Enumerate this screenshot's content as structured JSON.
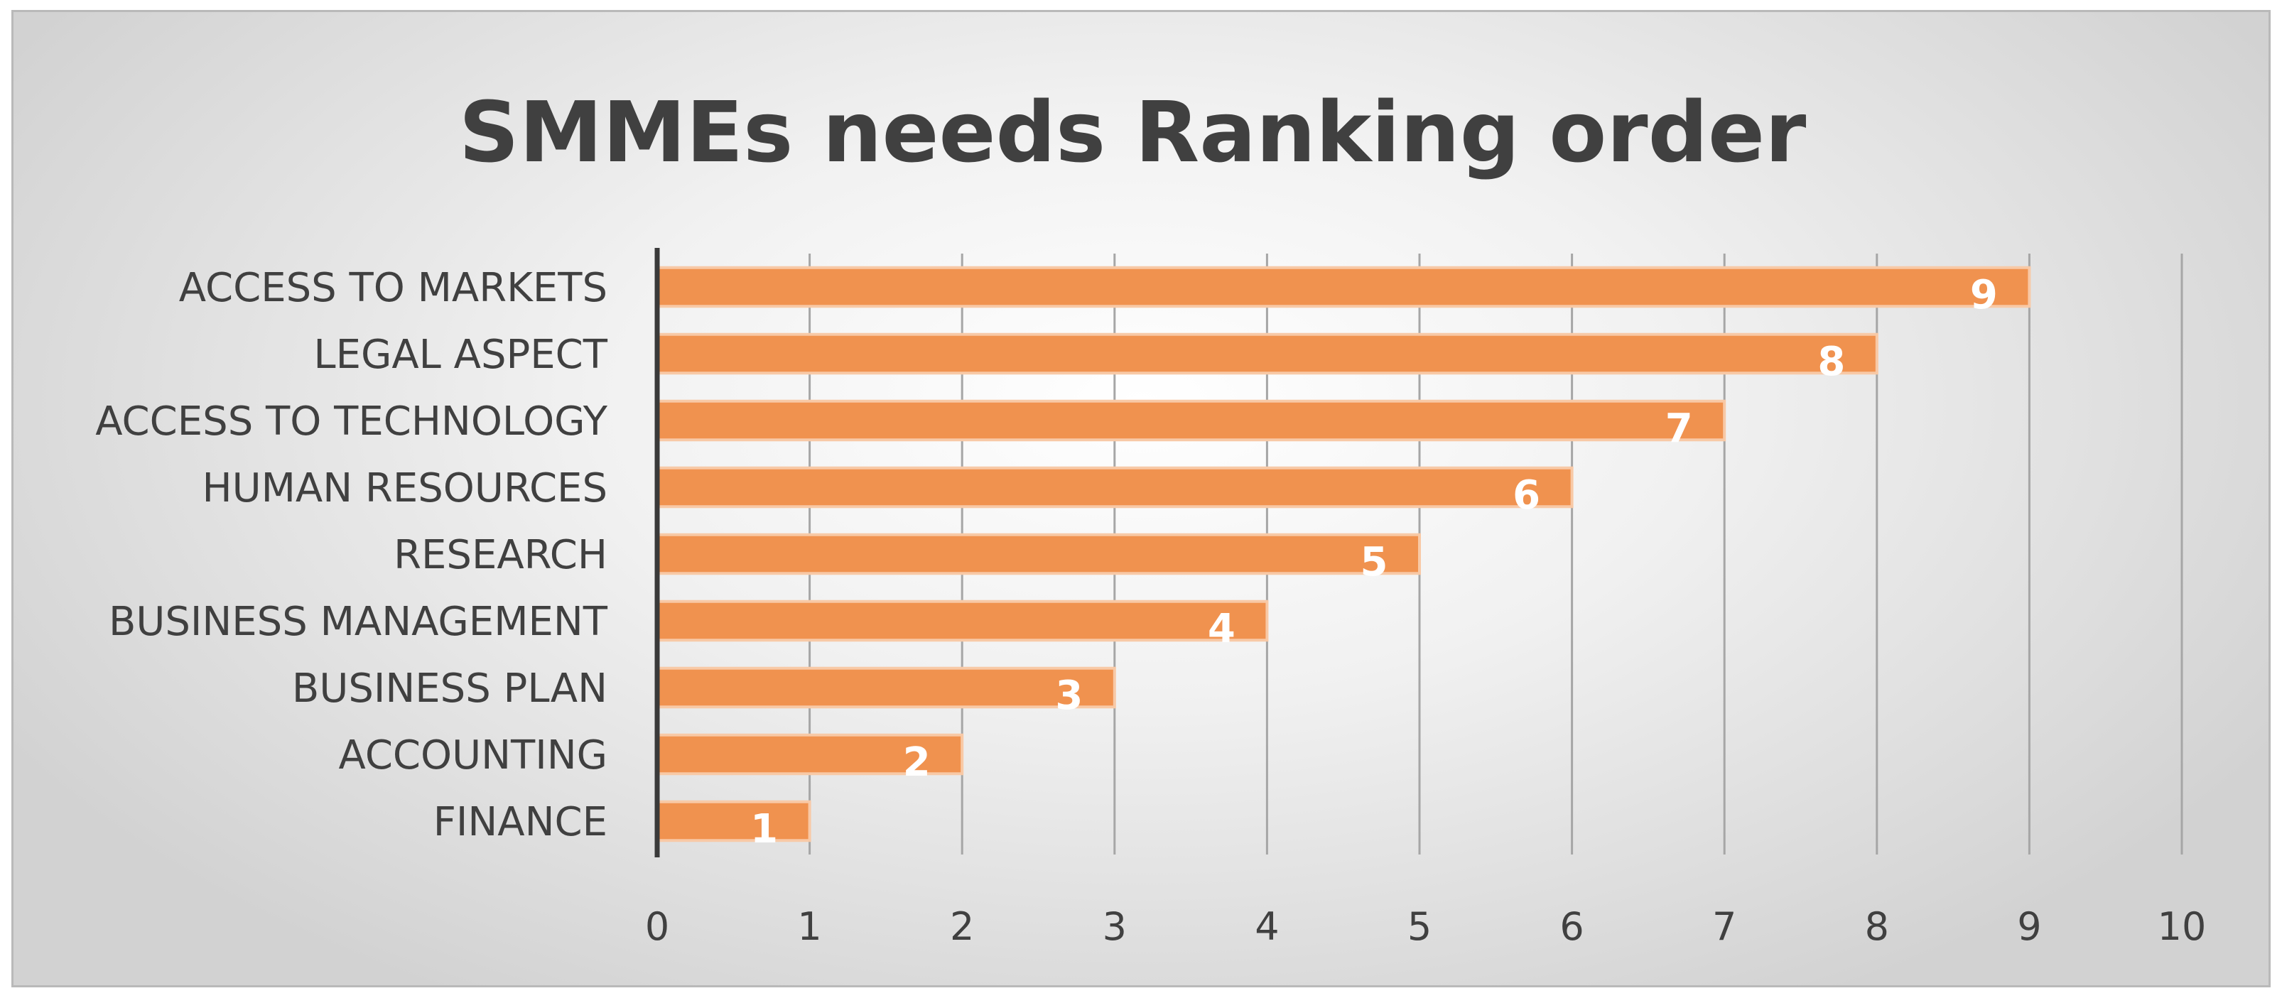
{
  "chart_data": {
    "type": "bar",
    "orientation": "horizontal",
    "title": "SMMEs needs Ranking order",
    "categories": [
      "ACCESS TO MARKETS",
      "LEGAL ASPECT",
      "ACCESS TO TECHNOLOGY",
      "HUMAN  RESOURCES",
      "RESEARCH",
      "BUSINESS MANAGEMENT",
      "BUSINESS PLAN",
      "ACCOUNTING",
      "FINANCE"
    ],
    "values": [
      9,
      8,
      7,
      6,
      5,
      4,
      3,
      2,
      1
    ],
    "data_labels": [
      "9",
      "8",
      "7",
      "6",
      "5",
      "4",
      "3",
      "2",
      "1"
    ],
    "xlim": [
      0,
      10
    ],
    "x_ticks": [
      0,
      1,
      2,
      3,
      4,
      5,
      6,
      7,
      8,
      9,
      10
    ],
    "x_tick_labels": [
      "0",
      "1",
      "2",
      "3",
      "4",
      "5",
      "6",
      "7",
      "8",
      "9",
      "10"
    ],
    "xlabel": "",
    "ylabel": "",
    "grid": "vertical",
    "legend": "none",
    "colors": {
      "bar": "#f0924f",
      "bar_border": "#f8c9a6",
      "grid": "#a6a6a6",
      "axis": "#3a3a3a",
      "text": "#404040",
      "data_label": "#ffffff"
    }
  }
}
